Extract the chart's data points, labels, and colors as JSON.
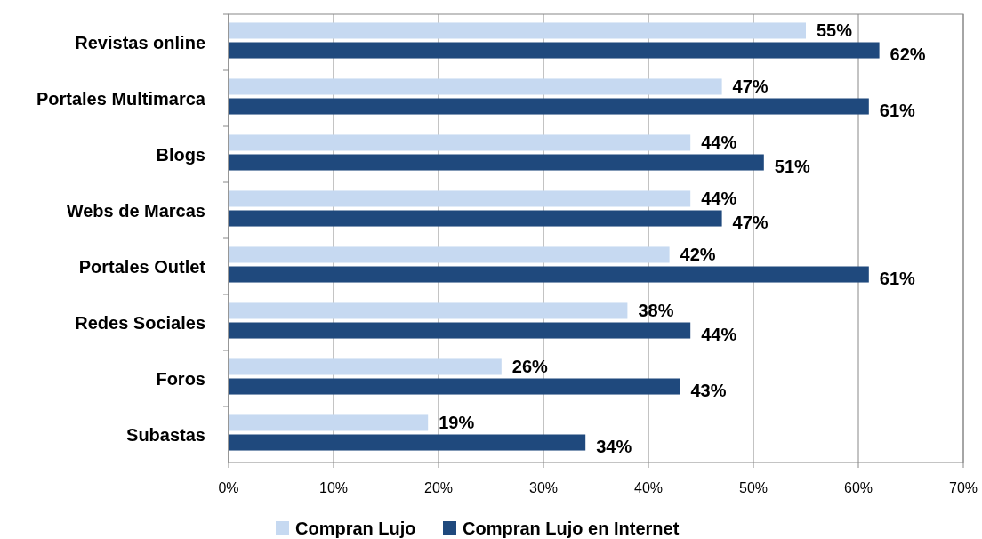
{
  "chart_data": {
    "type": "bar",
    "orientation": "horizontal",
    "categories": [
      "Revistas online",
      "Portales Multimarca",
      "Blogs",
      "Webs de Marcas",
      "Portales Outlet",
      "Redes Sociales",
      "Foros",
      "Subastas"
    ],
    "series": [
      {
        "name": "Compran Lujo",
        "color": "#c6d9f1",
        "values": [
          55,
          47,
          44,
          44,
          42,
          38,
          26,
          19
        ],
        "value_labels": [
          "55%",
          "47%",
          "44%",
          "44%",
          "42%",
          "38%",
          "26%",
          "19%"
        ]
      },
      {
        "name": "Compran Lujo en Internet",
        "color": "#1f497d",
        "values": [
          62,
          61,
          51,
          47,
          61,
          44,
          43,
          34
        ],
        "value_labels": [
          "62%",
          "61%",
          "51%",
          "47%",
          "61%",
          "44%",
          "43%",
          "34%"
        ]
      }
    ],
    "xlim": [
      0,
      70
    ],
    "xticks": [
      {
        "value": 0,
        "label": "0%"
      },
      {
        "value": 10,
        "label": "10%"
      },
      {
        "value": 20,
        "label": "20%"
      },
      {
        "value": 30,
        "label": "30%"
      },
      {
        "value": 40,
        "label": "40%"
      },
      {
        "value": 50,
        "label": "50%"
      },
      {
        "value": 60,
        "label": "60%"
      },
      {
        "value": 70,
        "label": "70%"
      }
    ],
    "grid": "x",
    "legend": "bottom"
  }
}
